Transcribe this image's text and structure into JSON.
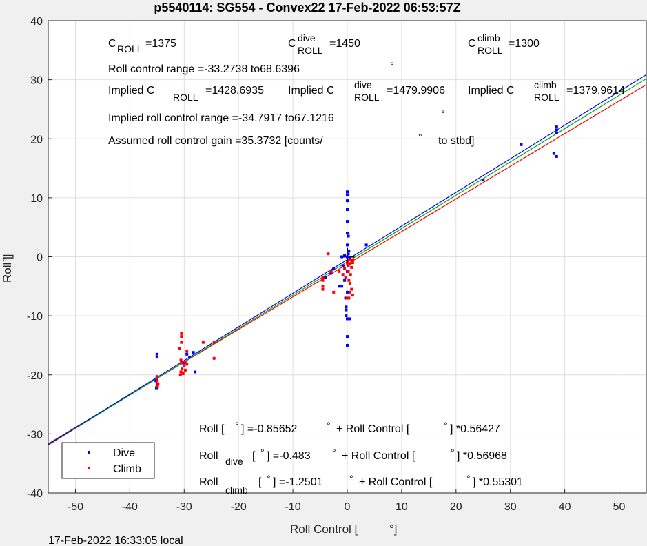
{
  "footer": {
    "timestamp": "17-Feb-2022 16:33:05 local"
  },
  "chart_data": {
    "type": "scatter",
    "title": "p5540114: SG554 - Convex22 17-Feb-2022 06:53:57Z",
    "xlabel": "Roll Control [",
    "xlabel_unit": "°]",
    "ylabel": "Roll [",
    "ylabel_unit": "°]",
    "xlim": [
      -55,
      55
    ],
    "ylim": [
      -40,
      40
    ],
    "xticks": [
      -50,
      -40,
      -30,
      -20,
      -10,
      0,
      10,
      20,
      30,
      40,
      50
    ],
    "yticks": [
      -40,
      -30,
      -20,
      -10,
      0,
      10,
      20,
      30,
      40
    ],
    "grid": true,
    "legend": {
      "position": "bottom-left",
      "entries": [
        "Dive",
        "Climb"
      ]
    },
    "colors": {
      "dive": "#0000ff",
      "climb": "#ff0000",
      "fit_all": "#00b000"
    },
    "annotations": {
      "c_roll": {
        "base": "C",
        "sub": "ROLL",
        "value": "=1375"
      },
      "c_roll_dive": {
        "base": "C",
        "sup": "dive",
        "sub": "ROLL",
        "value": "=1450"
      },
      "c_roll_climb": {
        "base": "C",
        "sup": "climb",
        "sub": "ROLL",
        "value": "=1300"
      },
      "roll_control_range": "Roll control range =-33.2738 to68.6396",
      "deg": "°",
      "implied_c_label": "Implied C",
      "implied_roll_sub": "ROLL",
      "implied_dive_sup": "dive",
      "implied_climb_sup": "climb",
      "implied_c_roll_value": "=1428.6935",
      "implied_c_dive_value": "=1479.9906",
      "implied_c_climb_value": "=1379.9614",
      "implied_range": "Implied roll control range =-34.7917 to67.1216",
      "gain_text": "Assumed roll control gain =35.3732 [counts/",
      "gain_unit": "to stbd]",
      "fit_all": {
        "lhs": "Roll [",
        "eq": "] =-0.85652",
        "rest": "+ Roll Control [",
        "end": "] *0.56427"
      },
      "fit_dive": {
        "lhs": "Roll",
        "sub": "dive",
        "open": "[",
        "eq": "] =-0.483",
        "rest": "+ Roll Control [",
        "end": "] *0.56968"
      },
      "fit_climb": {
        "lhs": "Roll",
        "sub": "climb",
        "open": "[",
        "eq": "] =-1.2501",
        "rest": "+ Roll Control [",
        "end": "] *0.55301"
      }
    },
    "fits": [
      {
        "name": "all",
        "intercept": -0.85652,
        "slope": 0.56427,
        "color": "#00b000"
      },
      {
        "name": "dive",
        "intercept": -0.483,
        "slope": 0.56968,
        "color": "#0000ff"
      },
      {
        "name": "climb",
        "intercept": -1.2501,
        "slope": 0.55301,
        "color": "#ff0000"
      }
    ],
    "series": [
      {
        "name": "Dive",
        "color": "#0000ff",
        "points": [
          [
            -35,
            -16.5
          ],
          [
            -35,
            -17
          ],
          [
            -35,
            -20.3
          ],
          [
            -35,
            -20.6
          ],
          [
            -35.2,
            -21
          ],
          [
            -35,
            -21.5
          ],
          [
            -35,
            -22
          ],
          [
            -35.1,
            -22.2
          ],
          [
            -30.5,
            -17.8
          ],
          [
            -30,
            -18
          ],
          [
            -29.5,
            -16.5
          ],
          [
            -29,
            -17
          ],
          [
            -28.3,
            -16.2
          ],
          [
            -28,
            -19.5
          ],
          [
            -4,
            -3.5
          ],
          [
            -3,
            -2.8
          ],
          [
            -2.5,
            -2
          ],
          [
            -1.5,
            -5
          ],
          [
            -1,
            -5
          ],
          [
            -0.5,
            -4
          ],
          [
            0,
            -6
          ],
          [
            -0.3,
            -7
          ],
          [
            -0.2,
            -9
          ],
          [
            -0.2,
            -10
          ],
          [
            0,
            -10.5
          ],
          [
            0,
            -13.5
          ],
          [
            0,
            -15
          ],
          [
            -0.2,
            -8.5
          ],
          [
            0.5,
            -10.5
          ],
          [
            0,
            11
          ],
          [
            0,
            10.5
          ],
          [
            0,
            9.5
          ],
          [
            0,
            8
          ],
          [
            0,
            6
          ],
          [
            0,
            4
          ],
          [
            0.2,
            3.5
          ],
          [
            0,
            2
          ],
          [
            0.3,
            1
          ],
          [
            0.2,
            0.5
          ],
          [
            0,
            0
          ],
          [
            -0.5,
            0.2
          ],
          [
            -1,
            0
          ],
          [
            0.5,
            -0.2
          ],
          [
            -0.8,
            -1.5
          ],
          [
            0,
            -2.5
          ],
          [
            3.5,
            2
          ],
          [
            25,
            13
          ],
          [
            32,
            19
          ],
          [
            38.5,
            21
          ],
          [
            38.5,
            21.5
          ],
          [
            38.5,
            22
          ],
          [
            38,
            17.5
          ],
          [
            38.5,
            17
          ]
        ]
      },
      {
        "name": "Climb",
        "color": "#ff0000",
        "points": [
          [
            -35,
            -20.5
          ],
          [
            -35,
            -21
          ],
          [
            -34.8,
            -21.5
          ],
          [
            -34.9,
            -22
          ],
          [
            -30.5,
            -13
          ],
          [
            -30.5,
            -13.5
          ],
          [
            -30.5,
            -14.5
          ],
          [
            -30.8,
            -15.5
          ],
          [
            -30.6,
            -17.5
          ],
          [
            -30.5,
            -18
          ],
          [
            -30.4,
            -19
          ],
          [
            -30.6,
            -19.5
          ],
          [
            -30.7,
            -20
          ],
          [
            -30.2,
            -19.8
          ],
          [
            -30,
            -18.5
          ],
          [
            -29.8,
            -19.2
          ],
          [
            -29.5,
            -18.2
          ],
          [
            -29.8,
            -17.8
          ],
          [
            -29.5,
            -16
          ],
          [
            -26.5,
            -14.5
          ],
          [
            -24.5,
            -17.2
          ],
          [
            -24.5,
            -14.5
          ],
          [
            -4.5,
            -3.5
          ],
          [
            -4.5,
            -4
          ],
          [
            -4.5,
            -5
          ],
          [
            -4.5,
            -5.5
          ],
          [
            -3.5,
            0.5
          ],
          [
            -3,
            -2.5
          ],
          [
            -2.5,
            -6
          ],
          [
            -1.5,
            -2.5
          ],
          [
            -0.8,
            -3
          ],
          [
            -0.5,
            -2
          ],
          [
            0,
            -1
          ],
          [
            0.2,
            -1.5
          ],
          [
            0.5,
            -1.2
          ],
          [
            0.8,
            -1.8
          ],
          [
            1,
            -1
          ],
          [
            0.4,
            -0.5
          ],
          [
            1,
            -0.5
          ],
          [
            -0.3,
            -3.5
          ],
          [
            0.3,
            -4
          ],
          [
            0.5,
            -4.5
          ],
          [
            0.8,
            -5.5
          ],
          [
            0.5,
            -6
          ],
          [
            1,
            -6.5
          ],
          [
            0.3,
            -7
          ],
          [
            0,
            -7
          ],
          [
            0.2,
            -2.5
          ],
          [
            0.6,
            -3
          ]
        ]
      }
    ]
  }
}
